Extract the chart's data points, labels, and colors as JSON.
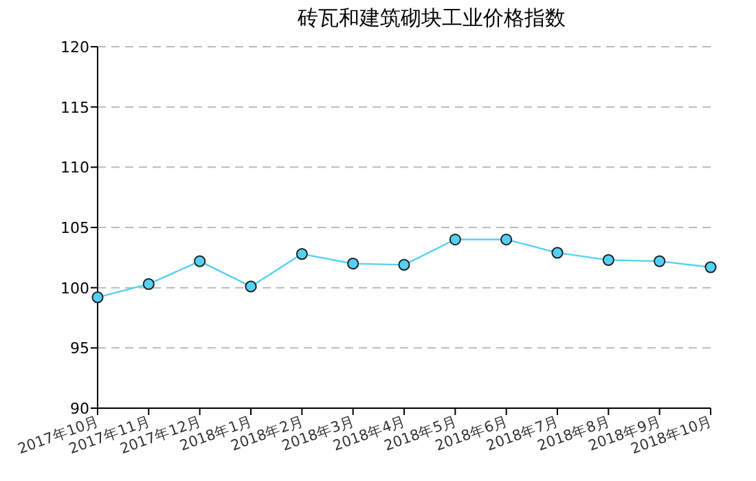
{
  "chart_data": {
    "type": "line",
    "title": "砖瓦和建筑砌块工业价格指数",
    "categories": [
      "2017年10月",
      "2017年11月",
      "2017年12月",
      "2018年1月",
      "2018年2月",
      "2018年3月",
      "2018年4月",
      "2018年5月",
      "2018年6月",
      "2018年7月",
      "2018年8月",
      "2018年9月",
      "2018年10月"
    ],
    "series": [
      {
        "color": "#55d0f5",
        "values": [
          99.2,
          100.3,
          102.2,
          100.1,
          102.8,
          102.0,
          101.9,
          104.0,
          104.0,
          102.9,
          102.3,
          102.2,
          101.7
        ]
      }
    ],
    "ylim": [
      90,
      120
    ],
    "yticks": [
      90,
      95,
      100,
      105,
      110,
      115,
      120
    ],
    "grid": "y",
    "marker": "circle",
    "line_style": "solid"
  }
}
